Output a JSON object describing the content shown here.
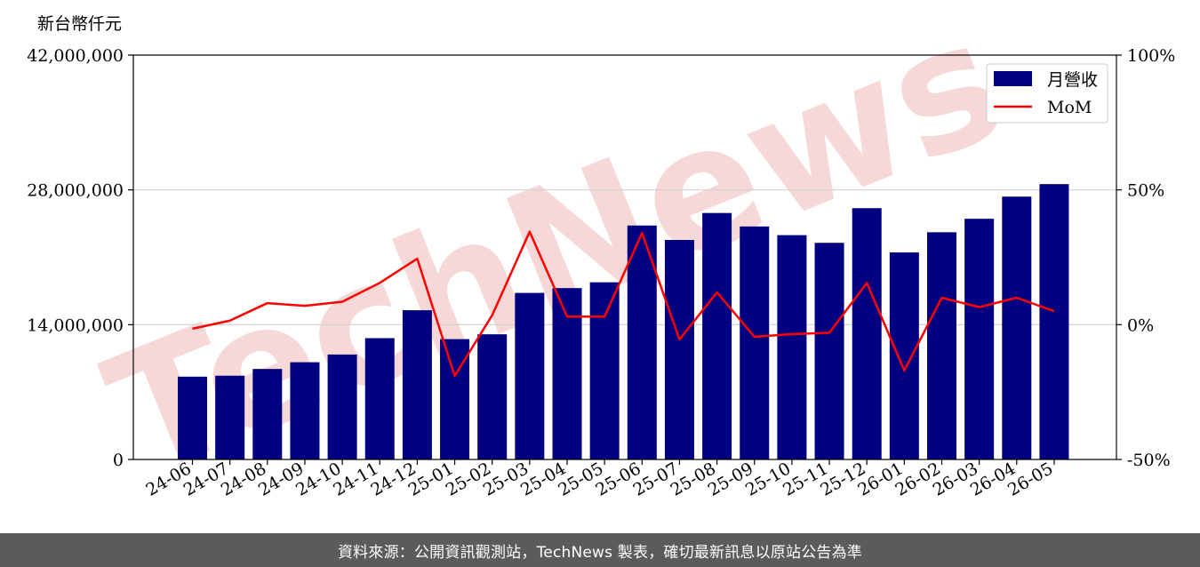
{
  "footer": {
    "source_text": "資料來源：公開資訊觀測站，TechNews 製表，確切最新訊息以原站公告為準"
  },
  "watermark": {
    "text": "TechNews",
    "color": "#f2c9c9"
  },
  "chart_data": {
    "type": "bar+line",
    "y_unit_label": "新台幣仟元",
    "categories": [
      "24-06",
      "24-07",
      "24-08",
      "24-09",
      "24-10",
      "24-11",
      "24-12",
      "25-01",
      "25-02",
      "25-03",
      "25-04",
      "25-05",
      "25-06",
      "25-07",
      "25-08",
      "25-09",
      "25-10",
      "25-11",
      "25-12",
      "26-01",
      "26-02",
      "26-03",
      "26-04",
      "26-05"
    ],
    "series": [
      {
        "name": "月營收",
        "type": "bar",
        "axis": "left",
        "color": "#000080",
        "values": [
          8600000,
          8700000,
          9400000,
          10100000,
          10900000,
          12600000,
          15500000,
          12500000,
          13000000,
          17300000,
          17800000,
          18400000,
          24300000,
          22800000,
          25600000,
          24200000,
          23300000,
          22500000,
          26100000,
          21500000,
          23600000,
          25000000,
          27300000,
          28600000
        ]
      },
      {
        "name": "MoM",
        "type": "line",
        "axis": "right",
        "color": "#ff0000",
        "values": [
          -1.5,
          1.5,
          8.0,
          7.0,
          8.5,
          15.5,
          24.5,
          -19.0,
          3.5,
          34.5,
          3.0,
          3.0,
          34.0,
          -5.5,
          12.0,
          -4.5,
          -3.5,
          -3.0,
          15.5,
          -17.0,
          10.0,
          6.5,
          10.0,
          5.0
        ]
      }
    ],
    "y_left": {
      "min": 0,
      "max": 42000000,
      "ticks": [
        0,
        14000000,
        28000000,
        42000000
      ],
      "tick_labels": [
        "0",
        "14,000,000",
        "28,000,000",
        "42,000,000"
      ]
    },
    "y_right": {
      "min": -50,
      "max": 100,
      "ticks": [
        -50,
        0,
        50,
        100
      ],
      "tick_labels": [
        "-50%",
        "0%",
        "50%",
        "100%"
      ]
    },
    "grid": "horizontal",
    "legend_position": "top-right"
  }
}
